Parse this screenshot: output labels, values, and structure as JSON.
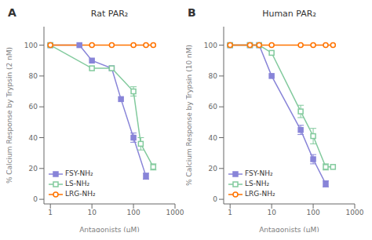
{
  "chart_data": [
    {
      "type": "line",
      "title": "Rat PAR₂",
      "annotation": "A",
      "x_label": "Antagonists (μM)",
      "y_label": "% Calcium Response by Trypsin (2 nM)",
      "log": "x",
      "xlim": [
        0.7,
        1000
      ],
      "xticks": [
        1,
        10,
        100,
        1000
      ],
      "ylim": [
        -3,
        112
      ],
      "yticks": [
        0,
        20,
        40,
        60,
        80,
        100
      ],
      "grid": false,
      "legend": "lower left",
      "series": [
        {
          "name": "FSY-NH₂",
          "color": "#8884d8",
          "marker": "square",
          "x": [
            1,
            5,
            10,
            30,
            50,
            100,
            200
          ],
          "values": [
            100,
            100,
            90,
            85,
            65,
            40,
            15
          ],
          "yerr": [
            0,
            0,
            0,
            0,
            0,
            3,
            2
          ]
        },
        {
          "name": "LS-NH₂",
          "color": "#82ca9d",
          "marker": "open-square",
          "x": [
            1,
            10,
            30,
            100,
            150,
            300
          ],
          "values": [
            100,
            85,
            85,
            70,
            36,
            21
          ],
          "yerr": [
            0,
            0,
            0,
            3,
            4,
            2
          ]
        },
        {
          "name": "LRG-NH₂",
          "color": "#ff7300",
          "marker": "open-circle",
          "x": [
            1,
            10,
            30,
            100,
            200,
            300
          ],
          "values": [
            100,
            100,
            100,
            100,
            100,
            100
          ],
          "yerr": [
            0,
            0,
            0,
            0,
            0,
            0
          ]
        }
      ]
    },
    {
      "type": "line",
      "title": "Human PAR₂",
      "annotation": "B",
      "x_label": "Antagonists (μM)",
      "y_label": "% Calcium Response by Trypsin (10 nM)",
      "log": "x",
      "xlim": [
        0.7,
        1000
      ],
      "xticks": [
        1,
        10,
        100,
        1000
      ],
      "ylim": [
        -3,
        112
      ],
      "yticks": [
        0,
        20,
        40,
        60,
        80,
        100
      ],
      "grid": false,
      "legend": "lower left",
      "series": [
        {
          "name": "FSY-NH₂",
          "color": "#8884d8",
          "marker": "square",
          "x": [
            1,
            3,
            5,
            10,
            50,
            100,
            200
          ],
          "values": [
            100,
            100,
            100,
            80,
            45,
            26,
            10
          ],
          "yerr": [
            0,
            0,
            0,
            0,
            3,
            3,
            2
          ]
        },
        {
          "name": "LS-NH₂",
          "color": "#82ca9d",
          "marker": "open-square",
          "x": [
            1,
            3,
            5,
            10,
            50,
            100,
            200,
            300
          ],
          "values": [
            100,
            100,
            100,
            95,
            57,
            41,
            21,
            21
          ],
          "yerr": [
            0,
            0,
            0,
            0,
            4,
            5,
            2,
            0
          ]
        },
        {
          "name": "LRG-NH₂",
          "color": "#ff7300",
          "marker": "open-circle",
          "x": [
            1,
            3,
            5,
            10,
            50,
            100,
            200,
            300
          ],
          "values": [
            100,
            100,
            100,
            100,
            100,
            100,
            100,
            100
          ],
          "yerr": [
            0,
            0,
            0,
            0,
            0,
            0,
            0,
            0
          ]
        }
      ]
    }
  ]
}
